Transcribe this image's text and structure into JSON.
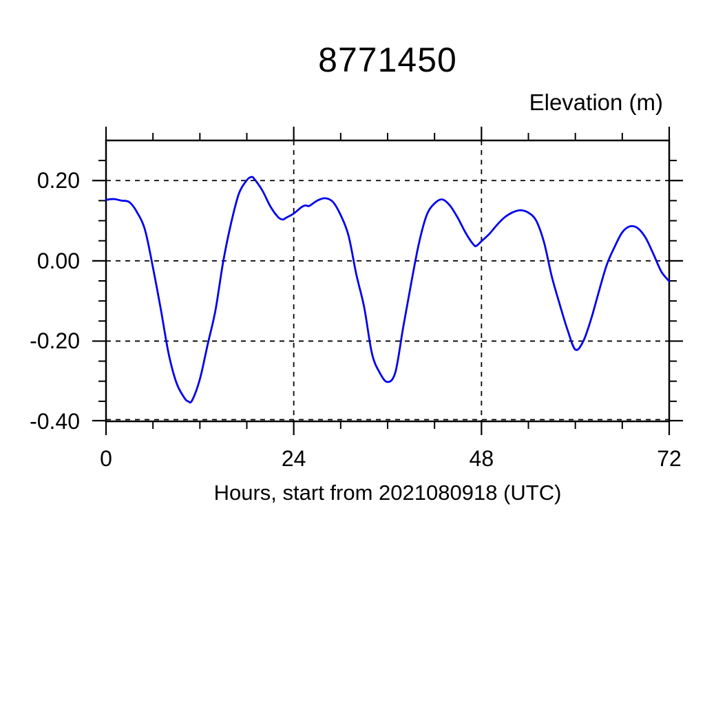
{
  "chart_data": {
    "type": "line",
    "title": "8771450",
    "ylabel": "Elevation (m)",
    "xlabel": "Hours, start from 2021080918 (UTC)",
    "xlim": [
      0,
      72
    ],
    "ylim": [
      -0.4,
      0.3
    ],
    "x_major_ticks": [
      0,
      24,
      48,
      72
    ],
    "x_tick_labels": [
      "0",
      "24",
      "48",
      "72"
    ],
    "x_minor_interval": 6,
    "y_major_ticks": [
      0.2,
      0.0,
      -0.2,
      -0.4
    ],
    "y_tick_labels": [
      "0.20",
      "0.00",
      "-0.20",
      "-0.40"
    ],
    "y_minor_interval": 0.05,
    "grid": "dashed lines at major ticks, ticks outward on all four sides",
    "legend": "none",
    "line_color": "#0000ee",
    "axis_color": "#000000",
    "background_color": "#ffffff",
    "series": [
      {
        "name": "elevation_m",
        "x": [
          0,
          1,
          2,
          3,
          4,
          5,
          6,
          7,
          8,
          9,
          10,
          10.5,
          11,
          12,
          13,
          14,
          15,
          16,
          17,
          18,
          18.6,
          19,
          20,
          21,
          22,
          22.6,
          23,
          24,
          25,
          25.5,
          26,
          27,
          28,
          29,
          30,
          31,
          32,
          33,
          34,
          35,
          36,
          37,
          38,
          39,
          40,
          41,
          42,
          43,
          44,
          45,
          46,
          47,
          47.4,
          48,
          49,
          50,
          51,
          52,
          53,
          54,
          55,
          56,
          57,
          58,
          59,
          60,
          61,
          62,
          63,
          64,
          65,
          66,
          67,
          68,
          69,
          70,
          71,
          72
        ],
        "y": [
          0.152,
          0.154,
          0.15,
          0.146,
          0.12,
          0.076,
          -0.017,
          -0.12,
          -0.231,
          -0.304,
          -0.341,
          -0.35,
          -0.348,
          -0.295,
          -0.208,
          -0.122,
          0.0,
          0.095,
          0.168,
          0.201,
          0.209,
          0.203,
          0.175,
          0.136,
          0.109,
          0.103,
          0.107,
          0.118,
          0.134,
          0.138,
          0.137,
          0.15,
          0.156,
          0.147,
          0.114,
          0.063,
          -0.034,
          -0.115,
          -0.231,
          -0.279,
          -0.302,
          -0.277,
          -0.165,
          -0.057,
          0.043,
          0.114,
          0.143,
          0.153,
          0.137,
          0.106,
          0.069,
          0.04,
          0.038,
          0.049,
          0.067,
          0.09,
          0.109,
          0.121,
          0.126,
          0.12,
          0.1,
          0.046,
          -0.04,
          -0.108,
          -0.172,
          -0.221,
          -0.201,
          -0.146,
          -0.077,
          -0.011,
          0.034,
          0.071,
          0.086,
          0.081,
          0.057,
          0.016,
          -0.027,
          -0.051
        ]
      }
    ]
  }
}
